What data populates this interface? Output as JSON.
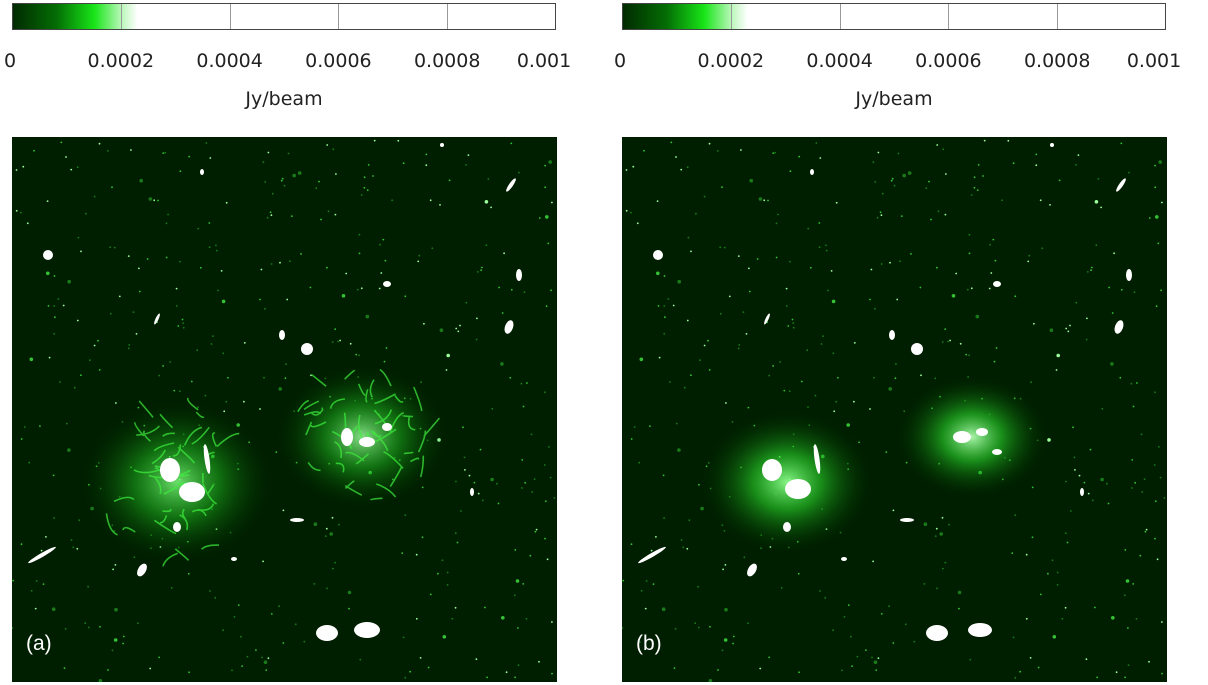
{
  "panels": [
    {
      "tag": "(a)",
      "colorbar": {
        "label": "Jy/beam",
        "ticks": [
          "0",
          "0.0002",
          "0.0004",
          "0.0006",
          "0.0008",
          "0.001"
        ],
        "range": [
          0,
          0.001
        ],
        "colormap": "green"
      }
    },
    {
      "tag": "(b)",
      "colorbar": {
        "label": "Jy/beam",
        "ticks": [
          "0",
          "0.0002",
          "0.0004",
          "0.0006",
          "0.0008",
          "0.001"
        ],
        "range": [
          0,
          0.001
        ],
        "colormap": "green"
      }
    }
  ],
  "colors": {
    "background": "#001f00",
    "bright": "#ffffff",
    "mid_green": "#18e518",
    "dark_green": "#046d04"
  }
}
